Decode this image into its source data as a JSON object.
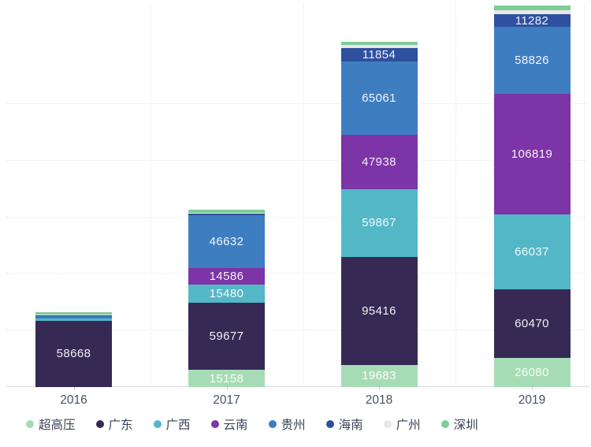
{
  "chart_data": {
    "type": "bar",
    "stacked": true,
    "title": "",
    "xlabel": "",
    "ylabel": "",
    "categories": [
      "2016",
      "2017",
      "2018",
      "2019"
    ],
    "series": [
      {
        "name": "超高压",
        "color": "#a6dcb5",
        "values": [
          0,
          15158,
          19683,
          26080
        ]
      },
      {
        "name": "广东",
        "color": "#362a55",
        "values": [
          58668,
          59677,
          95416,
          60470
        ]
      },
      {
        "name": "广西",
        "color": "#53b7c6",
        "values": [
          2100,
          15480,
          59867,
          66037
        ]
      },
      {
        "name": "云南",
        "color": "#7c34a6",
        "values": [
          0,
          14586,
          47938,
          106819
        ]
      },
      {
        "name": "贵州",
        "color": "#3e7dc0",
        "values": [
          2100,
          46632,
          65061,
          58826
        ]
      },
      {
        "name": "海南",
        "color": "#2e509e",
        "values": [
          700,
          1400,
          11854,
          11282
        ]
      },
      {
        "name": "广州",
        "color": "#e8e8e8",
        "values": [
          700,
          800,
          2500,
          3200
        ]
      },
      {
        "name": "深圳",
        "color": "#7fcb9b",
        "values": [
          2100,
          3200,
          3000,
          4200
        ]
      }
    ],
    "labeled_segment_min_value": 10000,
    "ylim": [
      0,
      342000
    ],
    "grid": true,
    "grid_interval": 50000,
    "y_axis_labels_visible": false,
    "legend_position": "bottom",
    "legend_entries": [
      "超高压",
      "广东",
      "广西",
      "云南",
      "贵州",
      "海南",
      "广州",
      "深圳"
    ]
  },
  "colors": {
    "background": "#ffffff",
    "axis_line": "#d8dade",
    "gridline": "#dfe9e9",
    "x_label_text": "#475068",
    "legend_text": "#3b4357",
    "segment_label_text": "#ffffff"
  }
}
